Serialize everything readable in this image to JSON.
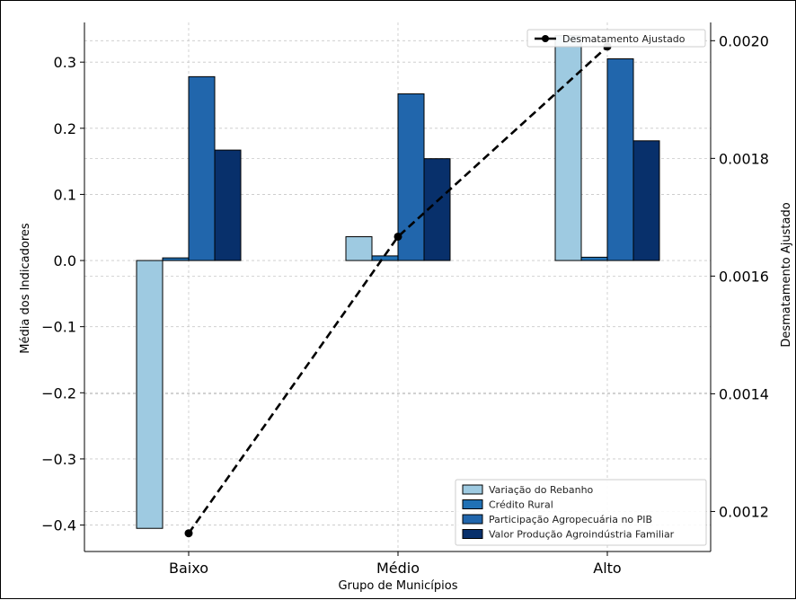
{
  "chart_data": {
    "type": "bar",
    "categories": [
      "Baixo",
      "Médio",
      "Alto"
    ],
    "xlabel": "Grupo de Municípios",
    "ylabel": "Média dos Indicadores",
    "y2label": "Desmatamento Ajustado",
    "ylim": [
      -0.44,
      0.36
    ],
    "y2lim": [
      0.001132,
      0.002031
    ],
    "yticks": [
      -0.4,
      -0.3,
      -0.2,
      -0.1,
      0.0,
      0.1,
      0.2,
      0.3
    ],
    "yticklabels": [
      "−0.4",
      "−0.3",
      "−0.2",
      "−0.1",
      "0.0",
      "0.1",
      "0.2",
      "0.3"
    ],
    "y2ticks": [
      0.0012,
      0.0014,
      0.0016,
      0.0018,
      0.002
    ],
    "y2ticklabels": [
      "0.0012",
      "0.0014",
      "0.0016",
      "0.0018",
      "0.0020"
    ],
    "grid": true,
    "series": [
      {
        "name": "Variação do Rebanho",
        "color": "#9ecae1",
        "values": [
          -0.405,
          0.036,
          0.34
        ]
      },
      {
        "name": "Crédito Rural",
        "color": "#2171b5",
        "values": [
          0.004,
          0.007,
          0.005
        ]
      },
      {
        "name": "Participação Agropecuária no PIB",
        "color": "#2166ac",
        "values": [
          0.278,
          0.252,
          0.305
        ]
      },
      {
        "name": "Valor Produção Agroindústria Familiar",
        "color": "#08306b",
        "values": [
          0.167,
          0.154,
          0.181
        ]
      }
    ],
    "line_series": {
      "name": "Desmatamento Ajustado",
      "axis": "right",
      "color": "#000000",
      "style": "dashed",
      "values": [
        0.001163,
        0.001667,
        0.00199
      ]
    },
    "legend_bars_position": "bottom-right",
    "legend_line_position": "top-right"
  }
}
